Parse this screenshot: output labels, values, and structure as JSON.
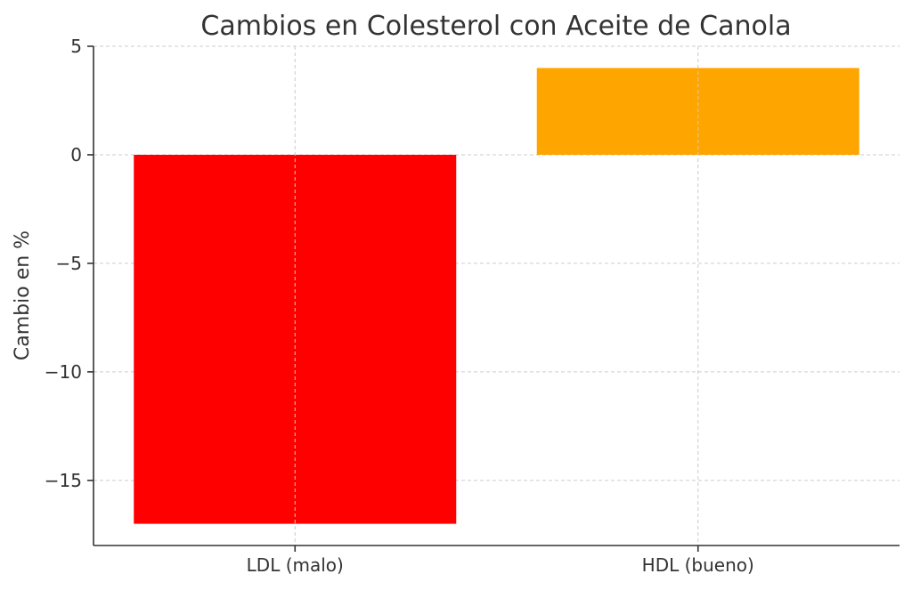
{
  "chart_data": {
    "type": "bar",
    "title": "Cambios en Colesterol con Aceite de Canola",
    "xlabel": "",
    "ylabel": "Cambio en %",
    "categories": [
      "LDL (malo)",
      "HDL (bueno)"
    ],
    "values": [
      -17,
      4
    ],
    "colors": [
      "#ff0000",
      "#ffa500"
    ],
    "ylim": [
      -18,
      5
    ],
    "yticks": [
      5,
      0,
      -5,
      -10,
      -15
    ],
    "ytick_labels": [
      "5",
      "0",
      "−5",
      "−10",
      "−15"
    ],
    "grid": true
  }
}
